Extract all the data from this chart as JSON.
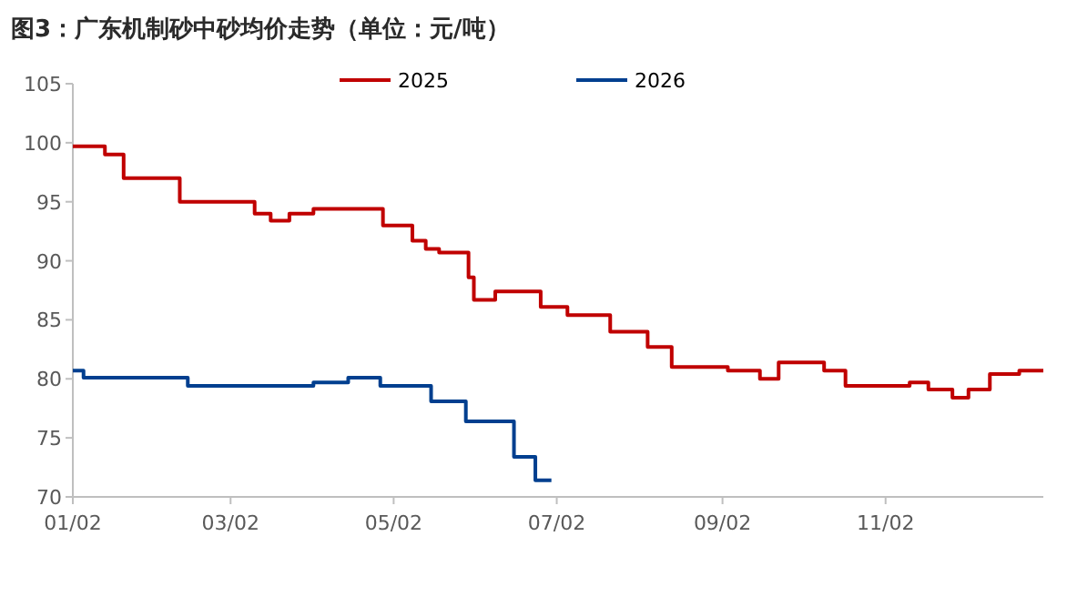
{
  "chart_data": {
    "type": "step",
    "title": "图3：广东机制砂中砂均价走势（单位：元/吨）",
    "xlim": [
      "--01-02",
      "--12-31"
    ],
    "xticks": [
      {
        "value": "--01-02",
        "label": "01/02"
      },
      {
        "value": "--03-02",
        "label": "03/02"
      },
      {
        "value": "--05-02",
        "label": "05/02"
      },
      {
        "value": "--07-02",
        "label": "07/02"
      },
      {
        "value": "--09-02",
        "label": "09/02"
      },
      {
        "value": "--11-02",
        "label": "11/02"
      }
    ],
    "ylim": [
      70,
      105
    ],
    "yticks": [
      70,
      75,
      80,
      85,
      90,
      95,
      100,
      105
    ],
    "grid": false,
    "legend": "top",
    "series": [
      {
        "name": "2025",
        "color": "#c00000",
        "x": [
          "--01-02",
          "--01-14",
          "--01-21",
          "--02-11",
          "--03-11",
          "--03-17",
          "--03-24",
          "--04-02",
          "--04-28",
          "--05-09",
          "--05-14",
          "--05-19",
          "--05-30",
          "--06-01",
          "--06-09",
          "--06-26",
          "--07-06",
          "--07-22",
          "--08-05",
          "--08-14",
          "--09-04",
          "--09-16",
          "--09-23",
          "--10-10",
          "--10-18",
          "--11-11",
          "--11-18",
          "--11-27",
          "--12-03",
          "--12-11",
          "--12-22",
          "--12-31"
        ],
        "values": [
          99.7,
          99.0,
          97.0,
          95.0,
          94.0,
          93.4,
          94.0,
          94.4,
          93.0,
          91.7,
          91.0,
          90.7,
          88.6,
          86.7,
          87.4,
          86.1,
          85.4,
          84.0,
          82.7,
          81.0,
          80.7,
          80.0,
          81.4,
          80.7,
          79.4,
          79.7,
          79.1,
          78.4,
          79.1,
          80.4,
          80.7,
          80.7
        ]
      },
      {
        "name": "2026",
        "color": "#003f8f",
        "x": [
          "--01-02",
          "--01-06",
          "--02-14",
          "--04-02",
          "--04-15",
          "--04-27",
          "--05-16",
          "--05-29",
          "--06-16",
          "--06-24",
          "--06-30"
        ],
        "values": [
          80.7,
          80.1,
          79.4,
          79.7,
          80.1,
          79.4,
          78.1,
          76.4,
          73.4,
          71.4,
          71.4
        ]
      }
    ]
  }
}
